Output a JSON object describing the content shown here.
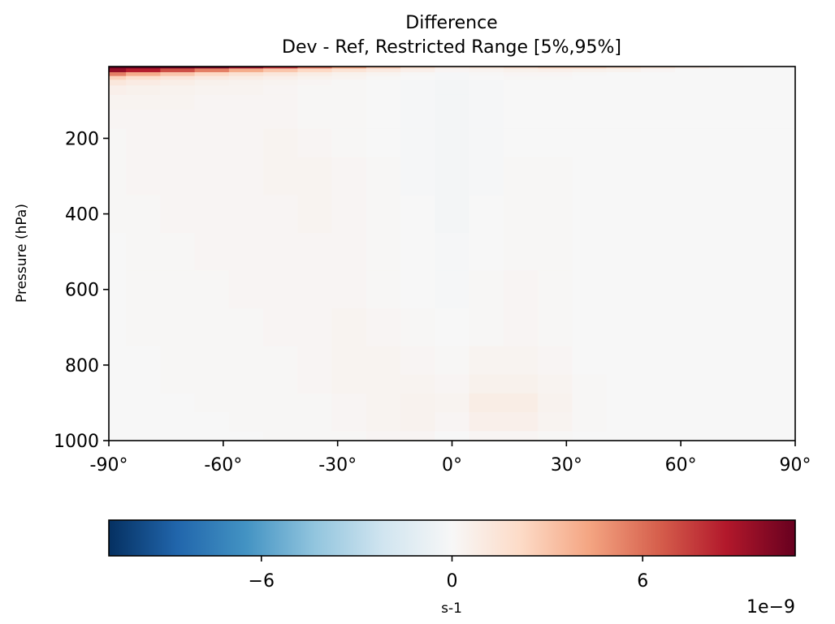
{
  "chart_data": {
    "type": "heatmap",
    "title": "Difference",
    "subtitle": "Dev - Ref, Restricted Range [5%,95%]",
    "xlabel": "",
    "ylabel": "Pressure (hPa)",
    "xlim": [
      -90,
      90
    ],
    "ylim": [
      1000,
      10
    ],
    "y_reversed": true,
    "x_ticks": [
      -90,
      -60,
      -30,
      0,
      30,
      60,
      90
    ],
    "x_tick_labels": [
      "-90°",
      "-60°",
      "-30°",
      "0°",
      "30°",
      "60°",
      "90°"
    ],
    "y_ticks": [
      200,
      400,
      600,
      800,
      1000
    ],
    "y_tick_labels": [
      "200",
      "400",
      "600",
      "800",
      "1000"
    ],
    "colormap": "RdBu_r",
    "colormap_stops": [
      "#053061",
      "#2166ac",
      "#4393c3",
      "#92c5de",
      "#d1e5f0",
      "#f7f7f7",
      "#fddbc7",
      "#f4a582",
      "#d6604d",
      "#b2182b",
      "#67001f"
    ],
    "colorbar": {
      "vmin": -10.8,
      "vmax": 10.8,
      "ticks": [
        -6,
        0,
        6
      ],
      "tick_labels": [
        "−6",
        "0",
        "6"
      ],
      "label": "s-1",
      "offset_text": "1e−9",
      "orientation": "horizontal"
    },
    "grid": false,
    "latitudes": [
      -90,
      -81,
      -72,
      -63,
      -54,
      -45,
      -36,
      -27,
      -18,
      -9,
      0,
      9,
      18,
      27,
      36,
      45,
      54,
      63,
      72,
      81,
      90
    ],
    "pressure_levels": [
      10,
      20,
      30,
      40,
      50,
      70,
      100,
      150,
      200,
      300,
      400,
      500,
      600,
      700,
      800,
      850,
      900,
      950,
      1000
    ],
    "values": [
      [
        10.8,
        10.8,
        10.8,
        10.5,
        9.5,
        8.0,
        6.0,
        4.5,
        3.0,
        2.0,
        1.2,
        1.5,
        2.0,
        2.5,
        2.5,
        2.0,
        1.5,
        1.0,
        0.5,
        0.2,
        0.0
      ],
      [
        9.5,
        8.5,
        7.0,
        5.5,
        4.0,
        3.0,
        2.2,
        1.5,
        1.0,
        0.6,
        0.2,
        0.3,
        0.5,
        0.6,
        0.5,
        0.4,
        0.2,
        0.0,
        0.0,
        0.0,
        0.0
      ],
      [
        5.5,
        4.0,
        3.0,
        2.2,
        1.6,
        1.2,
        0.8,
        0.5,
        0.3,
        0.1,
        -0.1,
        0.1,
        0.2,
        0.2,
        0.1,
        0.0,
        0.0,
        0.0,
        0.0,
        0.0,
        0.0
      ],
      [
        2.5,
        1.8,
        1.3,
        1.0,
        0.8,
        0.6,
        0.4,
        0.3,
        0.1,
        0.0,
        -0.1,
        0.0,
        0.1,
        0.1,
        0.0,
        0.0,
        0.0,
        0.0,
        0.0,
        0.0,
        0.0
      ],
      [
        1.2,
        0.9,
        0.7,
        0.5,
        0.4,
        0.3,
        0.2,
        0.1,
        0.0,
        -0.1,
        -0.2,
        -0.1,
        0.0,
        0.0,
        0.0,
        0.0,
        0.0,
        0.0,
        0.0,
        0.0,
        0.0
      ],
      [
        0.6,
        0.5,
        0.4,
        0.3,
        0.3,
        0.2,
        0.1,
        0.1,
        0.0,
        -0.1,
        -0.2,
        -0.1,
        0.0,
        0.0,
        0.0,
        0.0,
        0.0,
        0.0,
        0.0,
        0.0,
        0.0
      ],
      [
        0.3,
        0.3,
        0.3,
        0.2,
        0.2,
        0.2,
        0.1,
        0.1,
        0.0,
        -0.1,
        -0.2,
        -0.1,
        0.0,
        0.0,
        0.0,
        0.0,
        0.0,
        0.0,
        0.0,
        0.0,
        0.0
      ],
      [
        0.2,
        0.2,
        0.2,
        0.2,
        0.2,
        0.2,
        0.1,
        0.1,
        0.0,
        -0.1,
        -0.2,
        -0.1,
        0.0,
        0.0,
        0.0,
        0.0,
        0.0,
        0.0,
        0.0,
        0.0,
        0.0
      ],
      [
        0.1,
        0.2,
        0.2,
        0.2,
        0.2,
        0.3,
        0.2,
        0.1,
        0.0,
        -0.1,
        -0.2,
        -0.1,
        0.0,
        0.0,
        0.0,
        0.0,
        0.0,
        0.0,
        0.0,
        0.0,
        0.0
      ],
      [
        0.1,
        0.2,
        0.2,
        0.2,
        0.2,
        0.3,
        0.3,
        0.2,
        0.1,
        -0.1,
        -0.2,
        -0.1,
        0.1,
        0.1,
        0.0,
        0.0,
        0.0,
        0.0,
        0.0,
        0.0,
        0.0
      ],
      [
        0.1,
        0.1,
        0.2,
        0.2,
        0.2,
        0.2,
        0.3,
        0.2,
        0.1,
        0.0,
        -0.2,
        0.0,
        0.1,
        0.1,
        0.0,
        0.0,
        0.0,
        0.0,
        0.0,
        0.0,
        0.0
      ],
      [
        0.0,
        0.1,
        0.1,
        0.2,
        0.2,
        0.2,
        0.2,
        0.2,
        0.1,
        0.0,
        -0.1,
        0.0,
        0.1,
        0.1,
        0.0,
        0.0,
        0.0,
        0.0,
        0.0,
        0.0,
        0.0
      ],
      [
        0.0,
        0.1,
        0.1,
        0.1,
        0.2,
        0.2,
        0.2,
        0.2,
        0.1,
        0.0,
        -0.1,
        0.1,
        0.2,
        0.1,
        0.0,
        0.0,
        0.0,
        0.0,
        0.0,
        0.0,
        0.0
      ],
      [
        0.0,
        0.1,
        0.1,
        0.1,
        0.1,
        0.2,
        0.2,
        0.3,
        0.2,
        0.1,
        0.0,
        0.1,
        0.2,
        0.1,
        0.0,
        0.0,
        0.0,
        0.0,
        0.0,
        0.0,
        0.0
      ],
      [
        0.0,
        0.0,
        0.1,
        0.1,
        0.1,
        0.1,
        0.2,
        0.3,
        0.3,
        0.2,
        0.1,
        0.3,
        0.3,
        0.2,
        0.0,
        0.0,
        0.0,
        0.0,
        0.0,
        0.0,
        0.0
      ],
      [
        0.0,
        0.0,
        0.1,
        0.1,
        0.1,
        0.1,
        0.2,
        0.3,
        0.3,
        0.3,
        0.2,
        0.5,
        0.5,
        0.3,
        0.1,
        0.0,
        0.0,
        0.0,
        0.0,
        0.0,
        0.0
      ],
      [
        0.0,
        0.0,
        0.0,
        0.1,
        0.1,
        0.1,
        0.1,
        0.2,
        0.3,
        0.4,
        0.3,
        0.8,
        0.8,
        0.4,
        0.1,
        0.0,
        0.0,
        0.0,
        0.0,
        0.0,
        0.0
      ],
      [
        0.0,
        0.0,
        0.0,
        0.0,
        0.1,
        0.1,
        0.1,
        0.2,
        0.3,
        0.4,
        0.2,
        0.6,
        0.6,
        0.3,
        0.1,
        0.0,
        0.0,
        0.0,
        0.0,
        0.0,
        0.0
      ],
      [
        0.0,
        0.0,
        0.0,
        0.0,
        0.0,
        0.1,
        0.1,
        0.1,
        0.2,
        0.2,
        0.0,
        0.2,
        0.2,
        0.1,
        0.0,
        0.0,
        0.0,
        0.0,
        0.0,
        0.0,
        0.0
      ]
    ]
  }
}
